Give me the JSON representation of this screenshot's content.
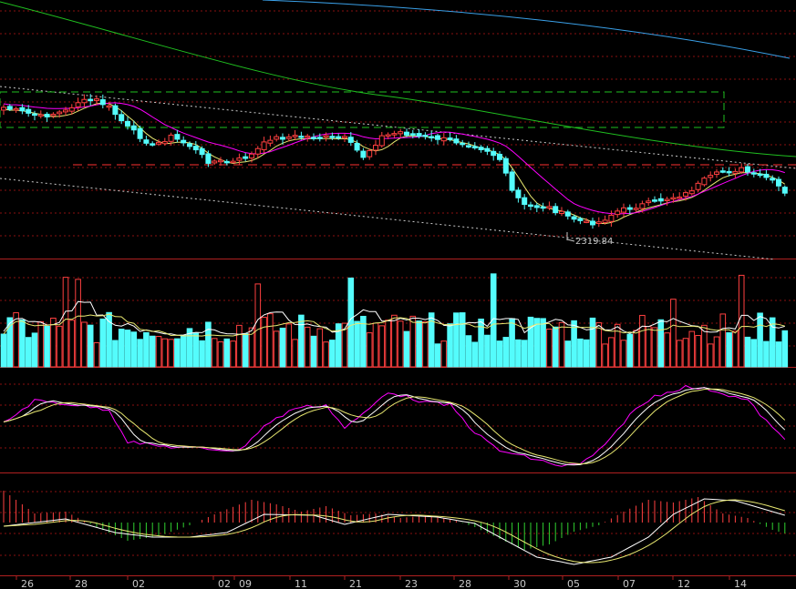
{
  "colors": {
    "up": "#ff4040",
    "down": "#54fcfc",
    "grid": "#8a1010",
    "ma_blue": "#3aa0e8",
    "ma_green": "#20c020",
    "ma_magenta": "#ff00ff",
    "ma_yellow": "#e8e870",
    "white": "#ffffff"
  },
  "chart_data": [
    {
      "type": "candlestick",
      "panel": "price",
      "annotation": "2319.84",
      "low_marker_label": "2319.84",
      "grid": true
    },
    {
      "type": "bar",
      "panel": "volume",
      "grid": true
    },
    {
      "type": "line",
      "panel": "oscillator",
      "grid": true
    },
    {
      "type": "line",
      "panel": "macd",
      "grid": true
    }
  ],
  "x_axis": {
    "tick_labels": [
      "26",
      "28",
      "02",
      "02",
      "09",
      "11",
      "21",
      "23",
      "28",
      "30",
      "05",
      "07",
      "12",
      "14"
    ]
  }
}
